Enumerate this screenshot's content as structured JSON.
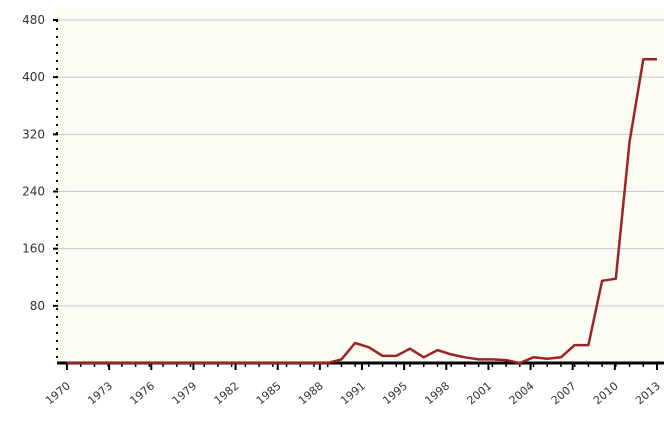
{
  "chart_data": {
    "type": "line",
    "title": "",
    "xlabel": "",
    "ylabel": "",
    "x_tick_labels": [
      "1970",
      "1973",
      "1976",
      "1979",
      "1982",
      "1985",
      "1988",
      "1991",
      "1995",
      "1998",
      "2001",
      "2004",
      "2007",
      "2010",
      "2013"
    ],
    "y_tick_labels": [
      "80",
      "160",
      "240",
      "320",
      "400",
      "480"
    ],
    "ylim": [
      0,
      480
    ],
    "xlim": [
      1970,
      2013
    ],
    "grid": "horizontal",
    "legend": "none",
    "colors": {
      "line": "#9b2424",
      "plot_background": "#fcfcf4",
      "gridline": "#c9c9c9",
      "axis": "#000000"
    },
    "series": [
      {
        "x": [
          1970,
          1971,
          1972,
          1973,
          1974,
          1975,
          1976,
          1977,
          1978,
          1979,
          1980,
          1981,
          1982,
          1983,
          1984,
          1985,
          1986,
          1987,
          1988,
          1989,
          1990,
          1991,
          1992,
          1993,
          1994,
          1995,
          1996,
          1997,
          1998,
          1999,
          2000,
          2001,
          2002,
          2003,
          2004,
          2005,
          2006,
          2007,
          2008,
          2009,
          2010,
          2011,
          2012,
          2013
        ],
        "values": [
          0,
          0,
          0,
          0,
          0,
          0,
          0,
          0,
          0,
          0,
          0,
          0,
          0,
          0,
          0,
          0,
          0,
          0,
          0,
          0,
          5,
          28,
          22,
          10,
          10,
          20,
          8,
          18,
          12,
          8,
          5,
          5,
          4,
          0,
          8,
          6,
          8,
          25,
          25,
          115,
          118,
          310,
          425,
          425
        ]
      }
    ]
  }
}
